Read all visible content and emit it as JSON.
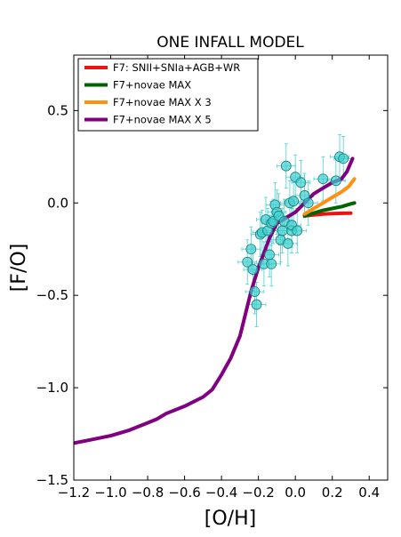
{
  "chart_data": {
    "type": "line",
    "title": "ONE INFALL MODEL",
    "xlabel": "[O/H]",
    "ylabel": "[F/O]",
    "xlim": [
      -1.2,
      0.5
    ],
    "ylim": [
      -1.5,
      0.8
    ],
    "xticks": [
      "−1.2",
      "−1.0",
      "−0.8",
      "−0.6",
      "−0.4",
      "−0.2",
      "0.0",
      "0.2",
      "0.4"
    ],
    "xtick_values": [
      -1.2,
      -1.0,
      -0.8,
      -0.6,
      -0.4,
      -0.2,
      0.0,
      0.2,
      0.4
    ],
    "yticks": [
      "−1.5",
      "−1.0",
      "−0.5",
      "0.0",
      "0.5"
    ],
    "ytick_values": [
      -1.5,
      -1.0,
      -0.5,
      0.0,
      0.5
    ],
    "grid": false,
    "legend_position": "top-left",
    "series": [
      {
        "name": "F7: SNII+SNIa+AGB+WR",
        "color": "#ee1111",
        "x": [
          0.05,
          0.1,
          0.15,
          0.2,
          0.25,
          0.3
        ],
        "y": [
          -0.07,
          -0.065,
          -0.06,
          -0.058,
          -0.056,
          -0.055
        ]
      },
      {
        "name": "F7+novae  MAX",
        "color": "#006400",
        "x": [
          0.05,
          0.1,
          0.15,
          0.2,
          0.25,
          0.3,
          0.32
        ],
        "y": [
          -0.07,
          -0.055,
          -0.04,
          -0.03,
          -0.02,
          -0.005,
          0.0
        ]
      },
      {
        "name": "F7+novae MAX X 3",
        "color": "#ff9010",
        "x": [
          0.05,
          0.1,
          0.15,
          0.2,
          0.25,
          0.29,
          0.32
        ],
        "y": [
          -0.06,
          -0.03,
          0.0,
          0.03,
          0.06,
          0.09,
          0.13
        ]
      },
      {
        "name": "F7+novae MAX  X 5",
        "color": "#800080",
        "x": [
          -1.2,
          -1.1,
          -1.0,
          -0.9,
          -0.8,
          -0.75,
          -0.7,
          -0.6,
          -0.5,
          -0.45,
          -0.4,
          -0.35,
          -0.3,
          -0.27,
          -0.24,
          -0.2,
          -0.17,
          -0.14,
          -0.1,
          -0.05,
          0.0,
          0.05,
          0.1,
          0.15,
          0.2,
          0.25,
          0.28,
          0.31
        ],
        "y": [
          -1.3,
          -1.28,
          -1.26,
          -1.23,
          -1.19,
          -1.17,
          -1.14,
          -1.1,
          -1.05,
          -1.01,
          -0.93,
          -0.84,
          -0.72,
          -0.6,
          -0.48,
          -0.35,
          -0.27,
          -0.19,
          -0.11,
          -0.08,
          -0.05,
          0.0,
          0.05,
          0.08,
          0.11,
          0.13,
          0.17,
          0.24
        ]
      }
    ],
    "observations": {
      "marker_color": "#40cfcf",
      "x": [
        -0.26,
        -0.24,
        -0.23,
        -0.22,
        -0.21,
        -0.19,
        -0.18,
        -0.17,
        -0.16,
        -0.15,
        -0.14,
        -0.13,
        -0.13,
        -0.12,
        -0.11,
        -0.1,
        -0.09,
        -0.08,
        -0.07,
        -0.06,
        -0.05,
        -0.04,
        -0.03,
        -0.02,
        -0.02,
        -0.01,
        0.0,
        0.01,
        0.03,
        0.05,
        0.07,
        0.15,
        0.22,
        0.24,
        0.26
      ],
      "y": [
        -0.32,
        -0.25,
        -0.36,
        -0.48,
        -0.55,
        -0.17,
        -0.16,
        -0.33,
        -0.09,
        -0.15,
        -0.28,
        -0.11,
        -0.33,
        -0.1,
        -0.01,
        -0.05,
        -0.07,
        -0.2,
        -0.15,
        -0.1,
        0.2,
        -0.22,
        0.0,
        -0.15,
        -0.12,
        0.01,
        0.14,
        -0.15,
        0.11,
        0.04,
        0.0,
        0.13,
        0.12,
        0.25,
        0.24
      ],
      "xerr": 0.05,
      "yerr": 0.12
    }
  }
}
